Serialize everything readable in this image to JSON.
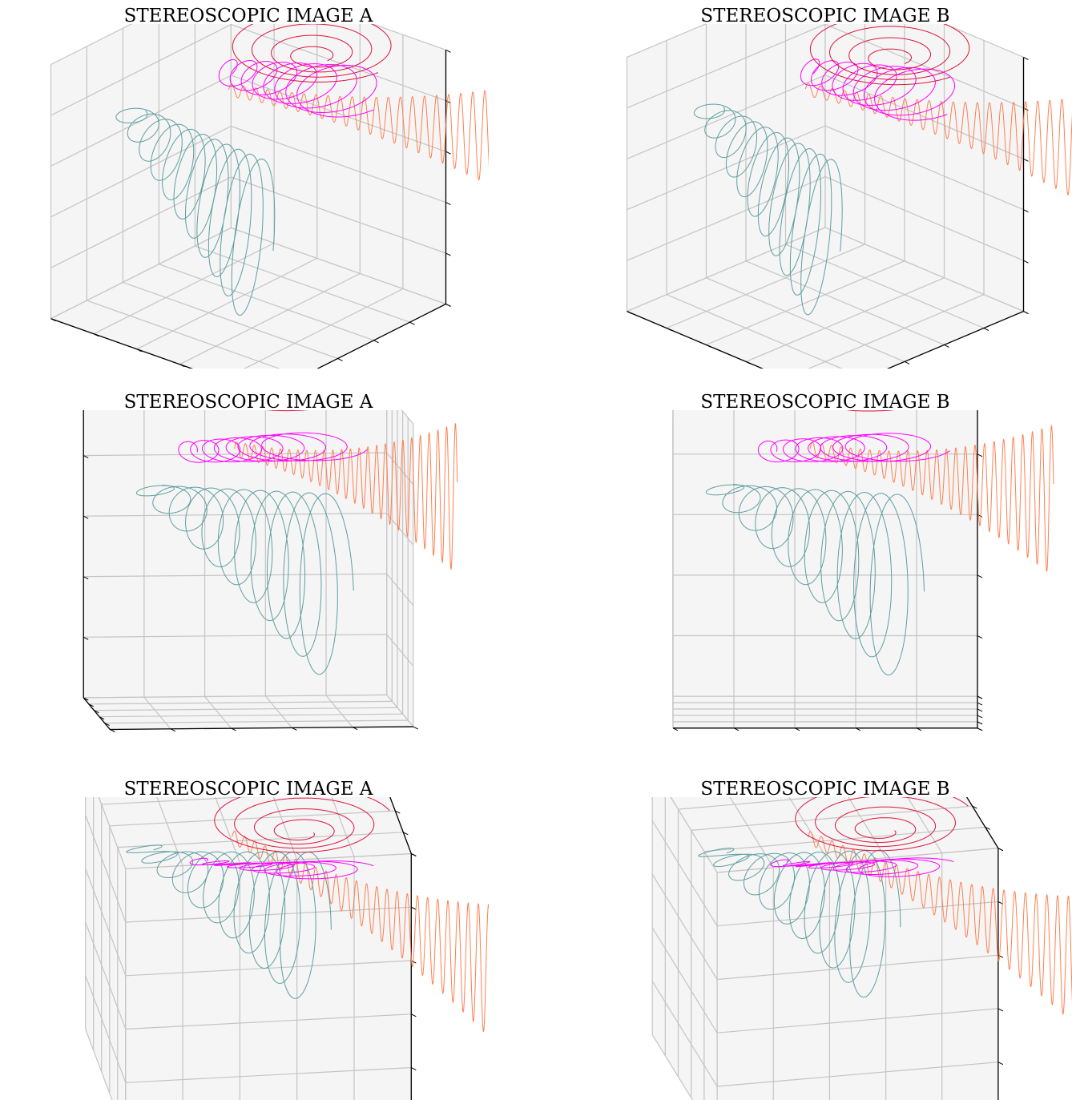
{
  "chart_data": [
    {
      "type": "line3d",
      "title": "STEREOSCOPIC IMAGE A",
      "series": [
        {
          "color": "#ff7f50"
        },
        {
          "color": "#5f9ea0"
        },
        {
          "color": "#ff00ff"
        },
        {
          "color": "#dc143c"
        }
      ]
    },
    {
      "type": "line3d",
      "title": "STEREOSCOPIC IMAGE B",
      "series": [
        {
          "color": "#ff7f50"
        },
        {
          "color": "#5f9ea0"
        },
        {
          "color": "#ff00ff"
        },
        {
          "color": "#dc143c"
        }
      ]
    },
    {
      "type": "line3d",
      "title": "STEREOSCOPIC IMAGE A",
      "series": [
        {
          "color": "#ff7f50"
        },
        {
          "color": "#5f9ea0"
        },
        {
          "color": "#ff00ff"
        },
        {
          "color": "#dc143c"
        }
      ]
    },
    {
      "type": "line3d",
      "title": "STEREOSCOPIC IMAGE B",
      "series": [
        {
          "color": "#ff7f50"
        },
        {
          "color": "#5f9ea0"
        },
        {
          "color": "#ff00ff"
        },
        {
          "color": "#dc143c"
        }
      ]
    },
    {
      "type": "line3d",
      "title": "STEREOSCOPIC IMAGE A",
      "series": [
        {
          "color": "#ff7f50"
        },
        {
          "color": "#5f9ea0"
        },
        {
          "color": "#ff00ff"
        },
        {
          "color": "#dc143c"
        }
      ]
    },
    {
      "type": "line3d",
      "title": "STEREOSCOPIC IMAGE B",
      "series": [
        {
          "color": "#ff7f50"
        },
        {
          "color": "#5f9ea0"
        },
        {
          "color": "#ff00ff"
        },
        {
          "color": "#dc143c"
        }
      ]
    }
  ]
}
